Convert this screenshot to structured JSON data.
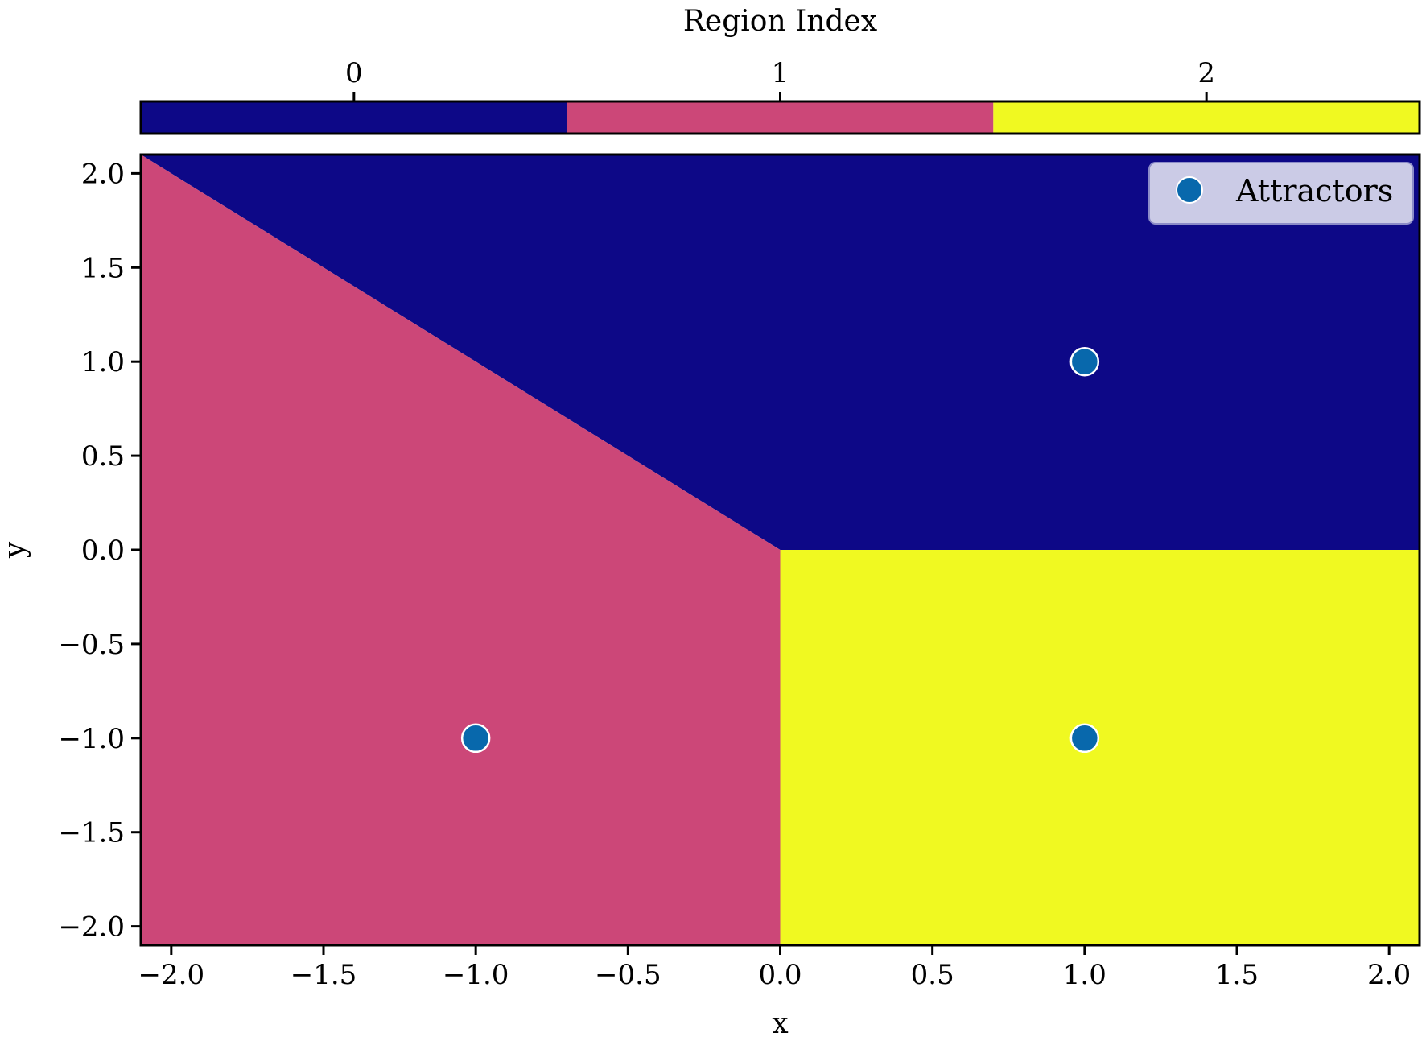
{
  "chart_data": {
    "type": "heatmap",
    "xlabel": "x",
    "ylabel": "y",
    "xlim": [
      -2.1,
      2.1
    ],
    "ylim": [
      -2.1,
      2.1
    ],
    "x_ticks": [
      -2.0,
      -1.5,
      -1.0,
      -0.5,
      0.0,
      0.5,
      1.0,
      1.5,
      2.0
    ],
    "y_ticks": [
      -2.0,
      -1.5,
      -1.0,
      -0.5,
      0.0,
      0.5,
      1.0,
      1.5,
      2.0
    ],
    "x_tick_labels": [
      "−2.0",
      "−1.5",
      "−1.0",
      "−0.5",
      "0.0",
      "0.5",
      "1.0",
      "1.5",
      "2.0"
    ],
    "y_tick_labels": [
      "−2.0",
      "−1.5",
      "−1.0",
      "−0.5",
      "0.0",
      "0.5",
      "1.0",
      "1.5",
      "2.0"
    ],
    "grid": false,
    "regions": [
      {
        "index": 0,
        "color": "#0d0887",
        "polygon": [
          [
            -2.1,
            2.1
          ],
          [
            2.1,
            2.1
          ],
          [
            2.1,
            0.0
          ],
          [
            0.0,
            0.0
          ]
        ]
      },
      {
        "index": 1,
        "color": "#cc4778",
        "polygon": [
          [
            -2.1,
            2.1
          ],
          [
            0.0,
            0.0
          ],
          [
            0.0,
            -2.1
          ],
          [
            -2.1,
            -2.1
          ]
        ]
      },
      {
        "index": 2,
        "color": "#f0f921",
        "polygon": [
          [
            0.0,
            0.0
          ],
          [
            2.1,
            0.0
          ],
          [
            2.1,
            -2.1
          ],
          [
            0.0,
            -2.1
          ]
        ]
      }
    ],
    "colorbar": {
      "label": "Region Index",
      "position": "top",
      "range": [
        -0.5,
        2.5
      ],
      "ticks": [
        0,
        1,
        2
      ],
      "tick_labels": [
        "0",
        "1",
        "2"
      ],
      "colors": [
        "#0d0887",
        "#cc4778",
        "#f0f921"
      ]
    },
    "series": [
      {
        "name": "Attractors",
        "type": "scatter",
        "color": "#0868ac",
        "edge_color": "#ffffff",
        "points": [
          [
            1.0,
            1.0
          ],
          [
            -1.0,
            -1.0
          ],
          [
            1.0,
            -1.0
          ]
        ]
      }
    ],
    "legend": {
      "placement": "top-right",
      "entries": [
        "Attractors"
      ],
      "background": "#cbcbe6"
    }
  }
}
